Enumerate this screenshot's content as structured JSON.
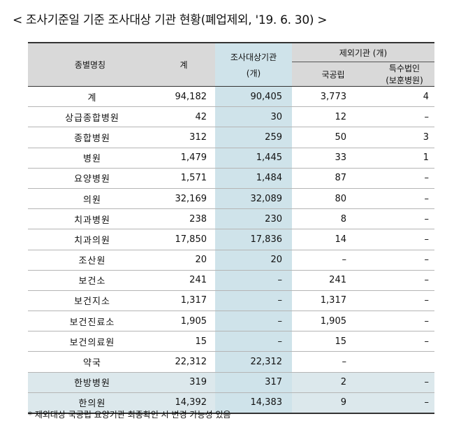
{
  "title": "< 조사기준일 기준 조사대상 기관 현황(폐업제외, '19. 6. 30) >",
  "headers": {
    "type": "종별명칭",
    "total": "계",
    "target_line1": "조사대상기관",
    "target_line2": "(개)",
    "excluded": "제외기관 (개)",
    "public": "국공립",
    "special_line1": "특수법인",
    "special_line2": "(보훈병원)"
  },
  "rows": [
    {
      "name": "계",
      "total": "94,182",
      "target": "90,405",
      "public": "3,773",
      "special": "4"
    },
    {
      "name": "상급종합병원",
      "total": "42",
      "target": "30",
      "public": "12",
      "special": "–"
    },
    {
      "name": "종합병원",
      "total": "312",
      "target": "259",
      "public": "50",
      "special": "3"
    },
    {
      "name": "병원",
      "total": "1,479",
      "target": "1,445",
      "public": "33",
      "special": "1"
    },
    {
      "name": "요양병원",
      "total": "1,571",
      "target": "1,484",
      "public": "87",
      "special": "–"
    },
    {
      "name": "의원",
      "total": "32,169",
      "target": "32,089",
      "public": "80",
      "special": "–"
    },
    {
      "name": "치과병원",
      "total": "238",
      "target": "230",
      "public": "8",
      "special": "–"
    },
    {
      "name": "치과의원",
      "total": "17,850",
      "target": "17,836",
      "public": "14",
      "special": "–"
    },
    {
      "name": "조산원",
      "total": "20",
      "target": "20",
      "public": "–",
      "special": "–"
    },
    {
      "name": "보건소",
      "total": "241",
      "target": "–",
      "public": "241",
      "special": "–"
    },
    {
      "name": "보건지소",
      "total": "1,317",
      "target": "–",
      "public": "1,317",
      "special": "–"
    },
    {
      "name": "보건진료소",
      "total": "1,905",
      "target": "–",
      "public": "1,905",
      "special": "–"
    },
    {
      "name": "보건의료원",
      "total": "15",
      "target": "–",
      "public": "15",
      "special": "–"
    },
    {
      "name": "약국",
      "total": "22,312",
      "target": "22,312",
      "public": "–",
      "special": ""
    },
    {
      "name": "한방병원",
      "total": "319",
      "target": "317",
      "public": "2",
      "special": "–"
    },
    {
      "name": "한의원",
      "total": "14,392",
      "target": "14,383",
      "public": "9",
      "special": "–"
    }
  ],
  "note": "* 제외대상 국공립 요양기관 최종확인 시 변경 가능성 있음"
}
